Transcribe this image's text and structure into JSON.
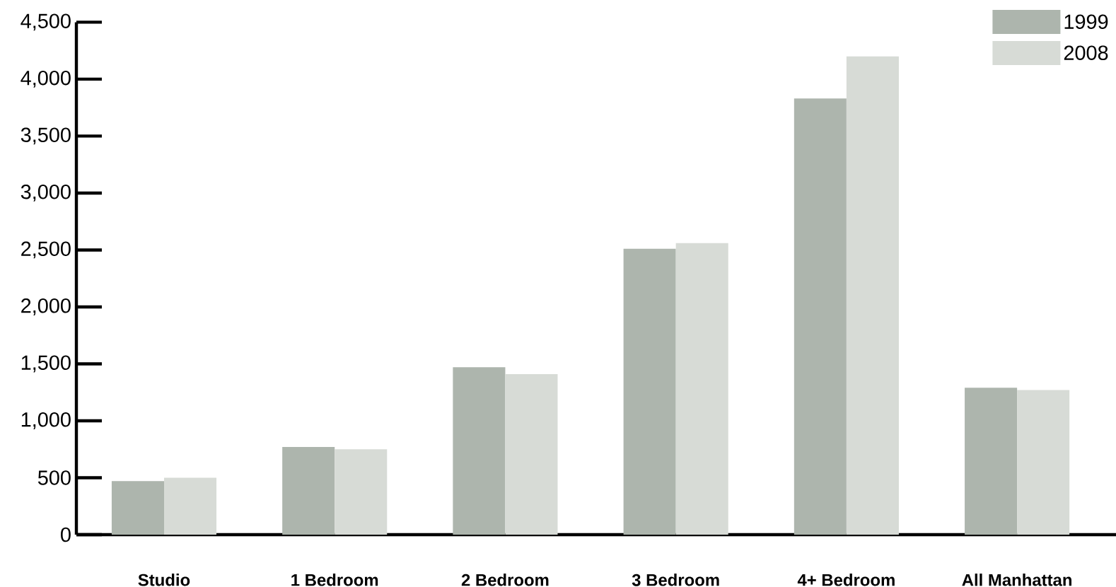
{
  "chart_data": {
    "type": "bar",
    "categories": [
      "Studio",
      "1 Bedroom",
      "2 Bedroom",
      "3 Bedroom",
      "4+ Bedroom",
      "All Manhattan"
    ],
    "series": [
      {
        "name": "1999",
        "color": "#adb5ad",
        "values": [
          470,
          770,
          1470,
          2510,
          3830,
          1290
        ]
      },
      {
        "name": "2008",
        "color": "#d7dbd6",
        "values": [
          500,
          750,
          1410,
          2560,
          4200,
          1270
        ]
      }
    ],
    "ylim": [
      0,
      4500
    ],
    "yticks": [
      0,
      {
        "value": 500,
        "label": "500"
      },
      {
        "value": 1000,
        "label": "1,000"
      },
      {
        "value": 1500,
        "label": "1,500"
      },
      {
        "value": 2000,
        "label": "2,000"
      },
      {
        "value": 2500,
        "label": "2,500"
      },
      {
        "value": 3000,
        "label": "3,000"
      },
      {
        "value": 3500,
        "label": "3,500"
      },
      {
        "value": 4000,
        "label": "4,000"
      },
      {
        "value": 4500,
        "label": "4,500"
      }
    ],
    "grid": false,
    "legend": "top right"
  }
}
